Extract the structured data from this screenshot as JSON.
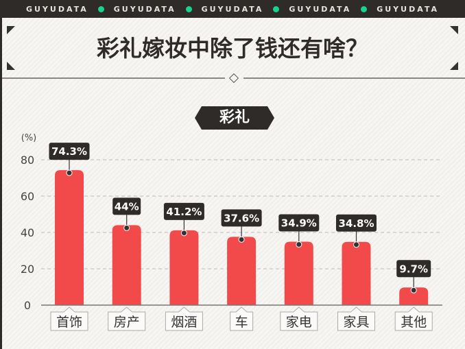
{
  "header": {
    "brand": "GUYUDATA",
    "repeat": 5,
    "dot_color": "#17d38d"
  },
  "title": "彩礼嫁妆中除了钱还有啥？",
  "subtitle": "彩礼",
  "chart_data": {
    "type": "bar",
    "title": "彩礼",
    "ylabel": "(%)",
    "ylim": [
      0,
      80
    ],
    "yticks": [
      0,
      20,
      40,
      60,
      80
    ],
    "grid": true,
    "categories": [
      "首饰",
      "房产",
      "烟酒",
      "车",
      "家电",
      "家具",
      "其他"
    ],
    "values": [
      74.3,
      44,
      41.2,
      37.6,
      34.9,
      34.8,
      9.7
    ],
    "data_labels": [
      "74.3%",
      "44%",
      "41.2%",
      "37.6%",
      "34.9%",
      "34.8%",
      "9.7%"
    ],
    "bar_color": "#f24a4a"
  }
}
